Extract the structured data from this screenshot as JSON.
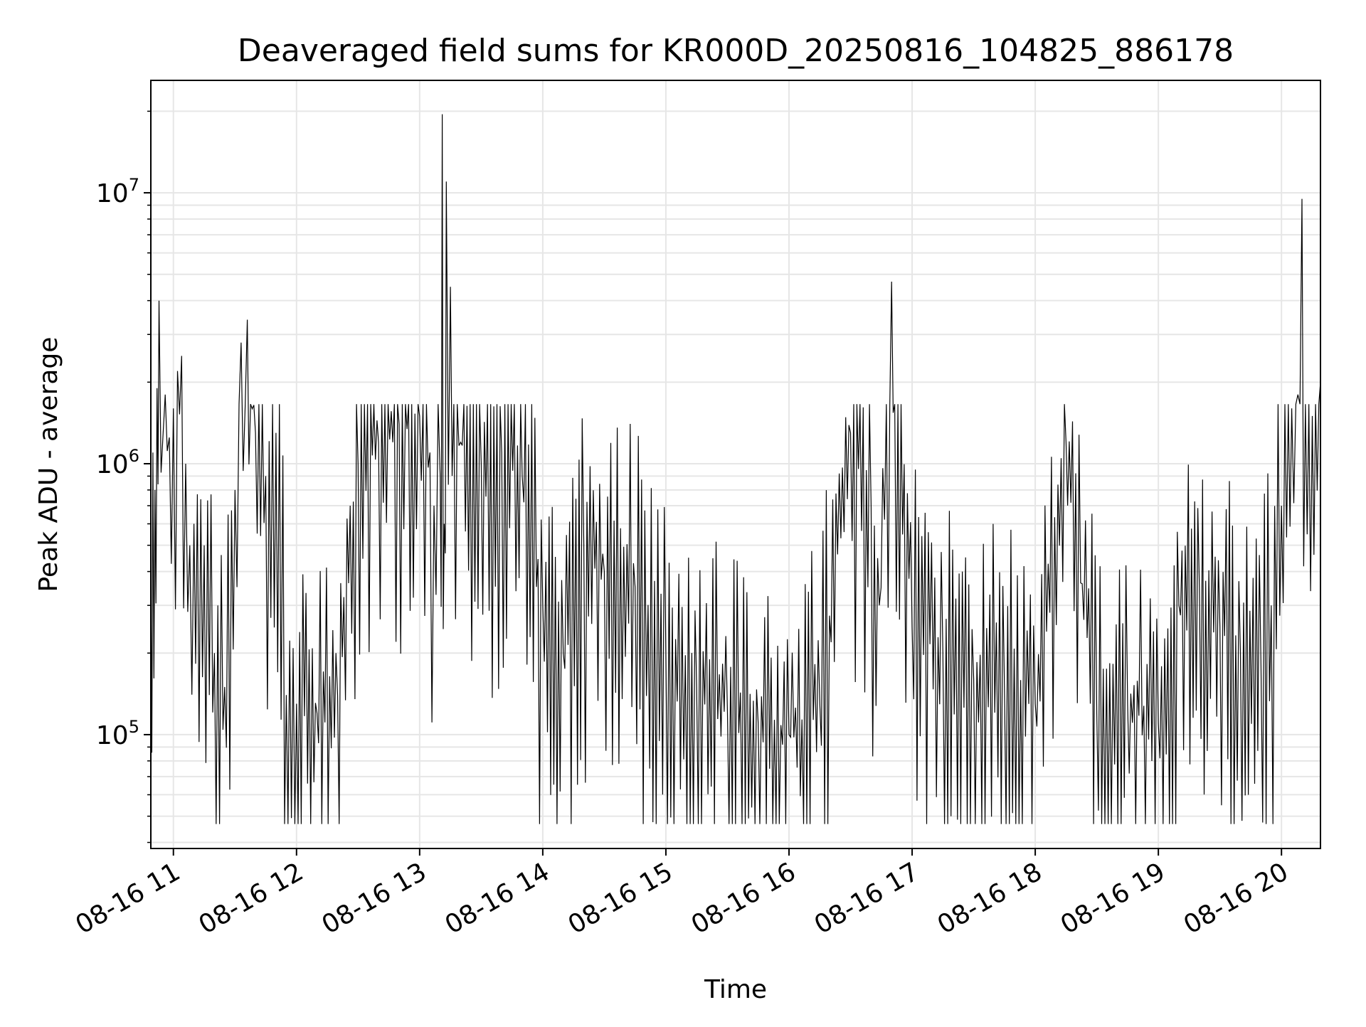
{
  "chart_data": {
    "type": "line",
    "title": "Deaveraged field sums for KR000D_20250816_104825_886178",
    "xlabel": "Time",
    "ylabel": "Peak ADU - average",
    "yscale": "log",
    "ylim": [
      38000,
      26000000
    ],
    "xlim": [
      "2025-08-16 10:49",
      "2025-08-16 20:19"
    ],
    "grid": "on (major and minor)",
    "line_color": "#000000",
    "x_ticks": [
      "2025-08-16 11:00",
      "2025-08-16 12:00",
      "2025-08-16 13:00",
      "2025-08-16 14:00",
      "2025-08-16 15:00",
      "2025-08-16 16:00",
      "2025-08-16 17:00",
      "2025-08-16 18:00",
      "2025-08-16 19:00",
      "2025-08-16 20:00"
    ],
    "x_tick_labels": [
      "08-16 11",
      "08-16 12",
      "08-16 13",
      "08-16 14",
      "08-16 15",
      "08-16 16",
      "08-16 17",
      "08-16 18",
      "08-16 19",
      "08-16 20"
    ],
    "y_ticks": [
      {
        "value": 100000,
        "base": "10",
        "exp": "5"
      },
      {
        "value": 1000000,
        "base": "10",
        "exp": "6"
      },
      {
        "value": 10000000,
        "base": "10",
        "exp": "7"
      }
    ],
    "series": [
      {
        "x": [
          "2025-08-16 10:49",
          "2025-08-16 10:50",
          "2025-08-16 10:51",
          "2025-08-16 10:52",
          "2025-08-16 10:53",
          "2025-08-16 10:55",
          "2025-08-16 10:56",
          "2025-08-16 10:58",
          "2025-08-16 11:00",
          "2025-08-16 11:02",
          "2025-08-16 11:04",
          "2025-08-16 11:06",
          "2025-08-16 11:08",
          "2025-08-16 11:10",
          "2025-08-16 11:15",
          "2025-08-16 11:20",
          "2025-08-16 11:25",
          "2025-08-16 11:30",
          "2025-08-16 11:33",
          "2025-08-16 11:36",
          "2025-08-16 11:40",
          "2025-08-16 11:45",
          "2025-08-16 11:50",
          "2025-08-16 11:55",
          "2025-08-16 12:00",
          "2025-08-16 12:10",
          "2025-08-16 12:20",
          "2025-08-16 12:30",
          "2025-08-16 12:40",
          "2025-08-16 12:50",
          "2025-08-16 13:00",
          "2025-08-16 13:05",
          "2025-08-16 13:07",
          "2025-08-16 13:10",
          "2025-08-16 13:11",
          "2025-08-16 13:12",
          "2025-08-16 13:13",
          "2025-08-16 13:15",
          "2025-08-16 13:20",
          "2025-08-16 13:30",
          "2025-08-16 13:40",
          "2025-08-16 13:50",
          "2025-08-16 14:00",
          "2025-08-16 14:10",
          "2025-08-16 14:20",
          "2025-08-16 14:30",
          "2025-08-16 14:45",
          "2025-08-16 15:00",
          "2025-08-16 15:15",
          "2025-08-16 15:30",
          "2025-08-16 15:45",
          "2025-08-16 16:00",
          "2025-08-16 16:15",
          "2025-08-16 16:30",
          "2025-08-16 16:40",
          "2025-08-16 16:44",
          "2025-08-16 16:50",
          "2025-08-16 17:00",
          "2025-08-16 17:15",
          "2025-08-16 17:30",
          "2025-08-16 17:45",
          "2025-08-16 18:00",
          "2025-08-16 18:15",
          "2025-08-16 18:30",
          "2025-08-16 18:45",
          "2025-08-16 19:00",
          "2025-08-16 19:10",
          "2025-08-16 19:20",
          "2025-08-16 19:30",
          "2025-08-16 19:40",
          "2025-08-16 19:50",
          "2025-08-16 19:55",
          "2025-08-16 20:00",
          "2025-08-16 20:05",
          "2025-08-16 20:08",
          "2025-08-16 20:10",
          "2025-08-16 20:15",
          "2025-08-16 20:19"
        ],
        "y": [
          400000,
          1100000,
          800000,
          1900000,
          4000000,
          1300000,
          1800000,
          1250000,
          1600000,
          2200000,
          2500000,
          1000000,
          500000,
          600000,
          500000,
          200000,
          150000,
          800000,
          2800000,
          3400000,
          1300000,
          900000,
          1300000,
          140000,
          130000,
          120000,
          140000,
          1000000,
          1200000,
          1400000,
          1500000,
          1100000,
          700000,
          900000,
          19500000,
          600000,
          11000000,
          4500000,
          1200000,
          1000000,
          1100000,
          900000,
          300000,
          200000,
          500000,
          400000,
          350000,
          200000,
          150000,
          120000,
          110000,
          100000,
          130000,
          1300000,
          700000,
          300000,
          4700000,
          250000,
          200000,
          160000,
          150000,
          130000,
          1200000,
          120000,
          130000,
          110000,
          300000,
          350000,
          250000,
          200000,
          180000,
          300000,
          700000,
          1600000,
          1800000,
          9500000,
          1500000,
          2000000
        ]
      }
    ]
  }
}
